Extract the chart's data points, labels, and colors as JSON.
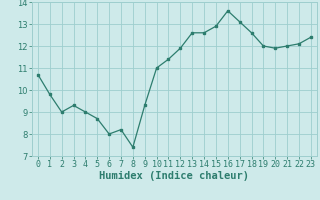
{
  "x": [
    0,
    1,
    2,
    3,
    4,
    5,
    6,
    7,
    8,
    9,
    10,
    11,
    12,
    13,
    14,
    15,
    16,
    17,
    18,
    19,
    20,
    21,
    22,
    23
  ],
  "y": [
    10.7,
    9.8,
    9.0,
    9.3,
    9.0,
    8.7,
    8.0,
    8.2,
    7.4,
    9.3,
    11.0,
    11.4,
    11.9,
    12.6,
    12.6,
    12.9,
    13.6,
    13.1,
    12.6,
    12.0,
    11.9,
    12.0,
    12.1,
    12.4
  ],
  "line_color": "#2d7d6e",
  "marker": "s",
  "marker_size": 2,
  "bg_color": "#ceeaea",
  "grid_color": "#9ecece",
  "xlabel": "Humidex (Indice chaleur)",
  "xlabel_fontsize": 7.5,
  "ylim": [
    7,
    14
  ],
  "xlim": [
    -0.5,
    23.5
  ],
  "yticks": [
    7,
    8,
    9,
    10,
    11,
    12,
    13,
    14
  ],
  "xtick_labels": [
    "0",
    "1",
    "2",
    "3",
    "4",
    "5",
    "6",
    "7",
    "8",
    "9",
    "10",
    "11",
    "12",
    "13",
    "14",
    "15",
    "16",
    "17",
    "18",
    "19",
    "20",
    "21",
    "22",
    "23"
  ],
  "tick_fontsize": 6.0
}
